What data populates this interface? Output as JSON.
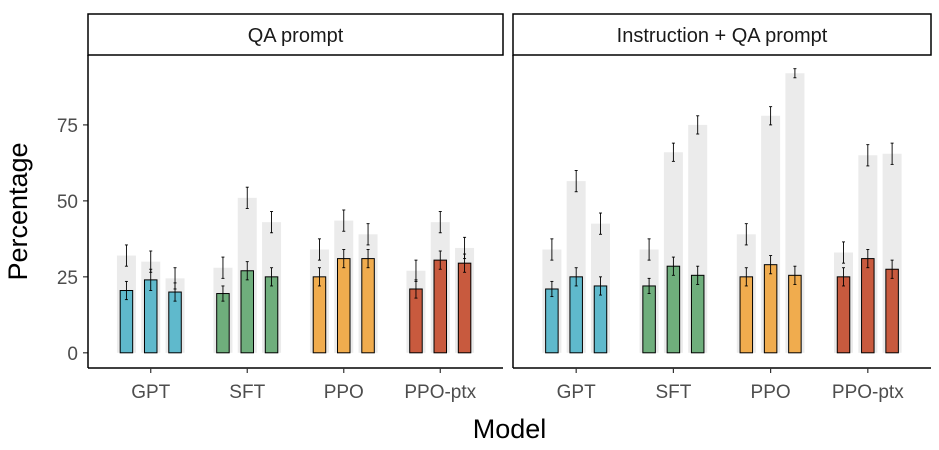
{
  "chart_data": {
    "type": "bar",
    "xlabel": "Model",
    "ylabel": "Percentage",
    "ylim": [
      -5,
      98
    ],
    "yticks": [
      0,
      25,
      50,
      75
    ],
    "categories": [
      "GPT",
      "SFT",
      "PPO",
      "PPO-ptx"
    ],
    "colors": {
      "GPT": "#5fb9cc",
      "SFT": "#6fae7c",
      "PPO": "#f0ac4e",
      "PPO-ptx": "#c85a3e",
      "background": "#ebebeb",
      "error": "#000000",
      "outline": "#000000"
    },
    "panels": [
      {
        "title": "QA prompt",
        "groups": [
          {
            "category": "GPT",
            "values": [
              20.5,
              24,
              20
            ],
            "errors": [
              3,
              3.5,
              3
            ],
            "background": [
              32,
              30,
              24.5
            ],
            "background_errors": [
              3.5,
              3.5,
              3.5
            ]
          },
          {
            "category": "SFT",
            "values": [
              19.5,
              27,
              25
            ],
            "errors": [
              2.5,
              3,
              3
            ],
            "background": [
              28,
              51,
              43
            ],
            "background_errors": [
              3.5,
              3.5,
              3.5
            ]
          },
          {
            "category": "PPO",
            "values": [
              25,
              31,
              31
            ],
            "errors": [
              3,
              3,
              3
            ],
            "background": [
              34,
              43.5,
              39
            ],
            "background_errors": [
              3.5,
              3.5,
              3.5
            ]
          },
          {
            "category": "PPO-ptx",
            "values": [
              21,
              30.5,
              29.5
            ],
            "errors": [
              3,
              3,
              3
            ],
            "background": [
              27,
              43,
              34.5
            ],
            "background_errors": [
              3.5,
              3.5,
              3.5
            ]
          }
        ]
      },
      {
        "title": "Instruction + QA prompt",
        "groups": [
          {
            "category": "GPT",
            "values": [
              21,
              25,
              22
            ],
            "errors": [
              2.5,
              3,
              3
            ],
            "background": [
              34,
              56.5,
              42.5
            ],
            "background_errors": [
              3.5,
              3.5,
              3.5
            ]
          },
          {
            "category": "SFT",
            "values": [
              22,
              28.5,
              25.5
            ],
            "errors": [
              2.5,
              3,
              3
            ],
            "background": [
              34,
              66,
              75
            ],
            "background_errors": [
              3.5,
              3,
              3
            ]
          },
          {
            "category": "PPO",
            "values": [
              25,
              29,
              25.5
            ],
            "errors": [
              3,
              3,
              3
            ],
            "background": [
              39,
              78,
              92
            ],
            "background_errors": [
              3.5,
              3,
              1.5
            ]
          },
          {
            "category": "PPO-ptx",
            "values": [
              25,
              31,
              27.5
            ],
            "errors": [
              3,
              3,
              3
            ],
            "background": [
              33,
              65,
              65.5
            ],
            "background_errors": [
              3.5,
              3.5,
              3.5
            ]
          }
        ]
      }
    ]
  }
}
